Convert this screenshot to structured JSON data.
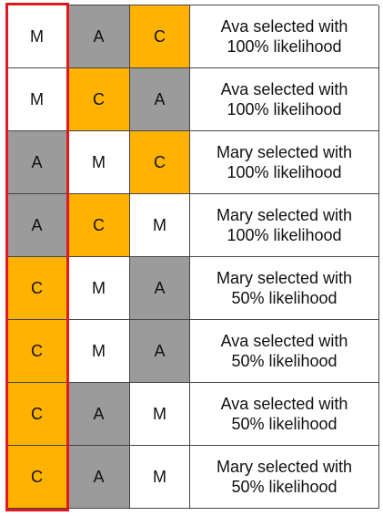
{
  "colors": {
    "M": "#ffffff",
    "A": "#9b9b9b",
    "C": "#ffb300",
    "highlight": "#e0191f"
  },
  "rows": [
    {
      "cells": [
        "M",
        "A",
        "C"
      ],
      "result": [
        "Ava selected with",
        "100% likelihood"
      ]
    },
    {
      "cells": [
        "M",
        "C",
        "A"
      ],
      "result": [
        "Ava selected with",
        "100% likelihood"
      ]
    },
    {
      "cells": [
        "A",
        "M",
        "C"
      ],
      "result": [
        "Mary selected with",
        "100% likelihood"
      ]
    },
    {
      "cells": [
        "A",
        "C",
        "M"
      ],
      "result": [
        "Mary selected with",
        "100% likelihood"
      ]
    },
    {
      "cells": [
        "C",
        "M",
        "A"
      ],
      "result": [
        "Mary selected with",
        "50% likelihood"
      ]
    },
    {
      "cells": [
        "C",
        "M",
        "A"
      ],
      "result": [
        "Ava selected with",
        "50% likelihood"
      ]
    },
    {
      "cells": [
        "C",
        "A",
        "M"
      ],
      "result": [
        "Ava selected with",
        "50% likelihood"
      ]
    },
    {
      "cells": [
        "C",
        "A",
        "M"
      ],
      "result": [
        "Mary selected with",
        "50% likelihood"
      ]
    }
  ]
}
